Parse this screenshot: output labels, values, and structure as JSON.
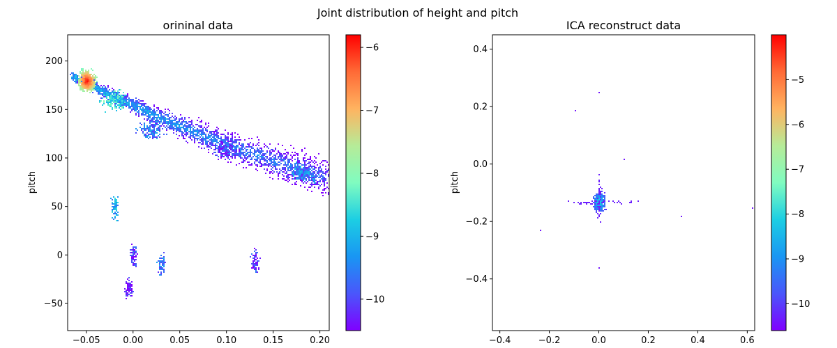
{
  "suptitle": "Joint distribution of height and pitch",
  "chart_data": [
    {
      "type": "heatmap",
      "title": "orininal data",
      "xlabel": "",
      "ylabel": "pitch",
      "xlim": [
        -0.07,
        0.21
      ],
      "ylim": [
        -78,
        227
      ],
      "xticks": [
        -0.05,
        0.0,
        0.05,
        0.1,
        0.15,
        0.2
      ],
      "xtick_labels": [
        "−0.05",
        "0.00",
        "0.05",
        "0.10",
        "0.15",
        "0.20"
      ],
      "yticks": [
        -50,
        0,
        50,
        100,
        150,
        200
      ],
      "ytick_labels": [
        "−50",
        "0",
        "50",
        "100",
        "150",
        "200"
      ],
      "colormap": "rainbow",
      "colorbar": {
        "range": [
          -10.5,
          -5.8
        ],
        "ticks": [
          -10,
          -9,
          -8,
          -7,
          -6
        ],
        "tick_labels": [
          "−10",
          "−9",
          "−8",
          "−7",
          "−6"
        ]
      },
      "clusters": [
        {
          "x": -0.05,
          "y": 180,
          "peak": -5.8,
          "note": "dense core"
        },
        {
          "x": -0.02,
          "y": 160,
          "peak": -8.0
        },
        {
          "x": 0.02,
          "y": 130,
          "peak": -9.0
        },
        {
          "x": 0.1,
          "y": 110,
          "peak": -9.5
        },
        {
          "x": 0.18,
          "y": 85,
          "peak": -8.8
        },
        {
          "x": -0.02,
          "y": 50,
          "peak": -8.5
        },
        {
          "x": 0.0,
          "y": 0,
          "peak": -9.5
        },
        {
          "x": -0.005,
          "y": -35,
          "peak": -9.8
        },
        {
          "x": 0.03,
          "y": -10,
          "peak": -9.0
        },
        {
          "x": 0.13,
          "y": -5,
          "peak": -9.5
        }
      ]
    },
    {
      "type": "heatmap",
      "title": "ICA reconstruct data",
      "xlabel": "",
      "ylabel": "pitch",
      "xlim": [
        -0.43,
        0.63
      ],
      "ylim": [
        -0.58,
        0.45
      ],
      "xticks": [
        -0.4,
        -0.2,
        0.0,
        0.2,
        0.4,
        0.6
      ],
      "xtick_labels": [
        "−0.4",
        "−0.2",
        "0.0",
        "0.2",
        "0.4",
        "0.6"
      ],
      "yticks": [
        -0.4,
        -0.2,
        0.0,
        0.2,
        0.4
      ],
      "ytick_labels": [
        "−0.4",
        "−0.2",
        "0.0",
        "0.2",
        "0.4"
      ],
      "colormap": "rainbow",
      "colorbar": {
        "range": [
          -10.6,
          -4.0
        ],
        "ticks": [
          -10,
          -9,
          -8,
          -7,
          -6,
          -5
        ],
        "tick_labels": [
          "−10",
          "−9",
          "−8",
          "−7",
          "−6",
          "−5"
        ]
      },
      "clusters": [
        {
          "x": 0.0,
          "y": -0.13,
          "peak": -7.8,
          "note": "central blob"
        }
      ]
    }
  ]
}
